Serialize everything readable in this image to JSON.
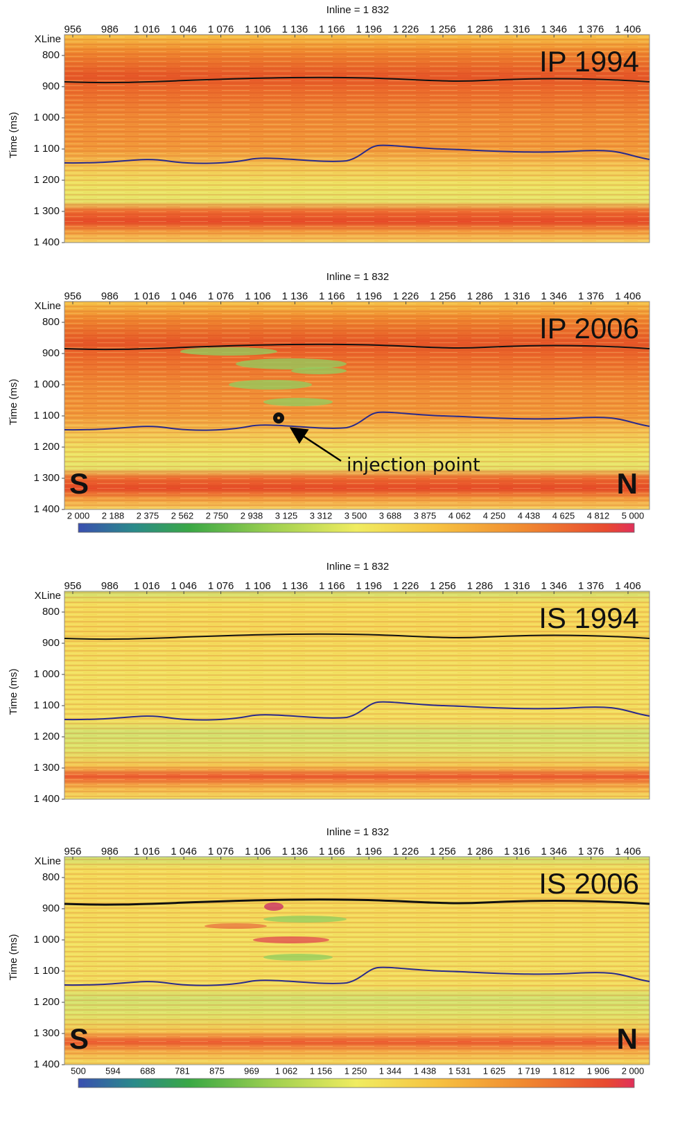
{
  "panels": [
    {
      "title": "Inline = 1 832",
      "x_axis_label": "XLine",
      "y_axis_label": "Time (ms)",
      "x_ticks": [
        "956",
        "986",
        "1 016",
        "1 046",
        "1 076",
        "1 106",
        "1 136",
        "1 166",
        "1 196",
        "1 226",
        "1 256",
        "1 286",
        "1 316",
        "1 346",
        "1 376",
        "1 406"
      ],
      "y_ticks": [
        "800",
        "900",
        "1 000",
        "1 100",
        "1 200",
        "1 300",
        "1 400"
      ],
      "label": "IP 1994"
    },
    {
      "title": "Inline = 1 832",
      "x_axis_label": "XLine",
      "y_axis_label": "Time (ms)",
      "x_ticks": [
        "956",
        "986",
        "1 016",
        "1 046",
        "1 076",
        "1 106",
        "1 136",
        "1 166",
        "1 196",
        "1 226",
        "1 256",
        "1 286",
        "1 316",
        "1 346",
        "1 376",
        "1 406"
      ],
      "y_ticks": [
        "800",
        "900",
        "1 000",
        "1 100",
        "1 200",
        "1 300",
        "1 400"
      ],
      "label": "IP 2006",
      "south_label": "S",
      "north_label": "N",
      "annotation": "injection point",
      "colorbar_ticks": [
        "2 000",
        "2 188",
        "2 375",
        "2 562",
        "2 750",
        "2 938",
        "3 125",
        "3 312",
        "3 500",
        "3 688",
        "3 875",
        "4 062",
        "4 250",
        "4 438",
        "4 625",
        "4 812",
        "5 000"
      ]
    },
    {
      "title": "Inline = 1 832",
      "x_axis_label": "XLine",
      "y_axis_label": "Time (ms)",
      "x_ticks": [
        "956",
        "986",
        "1 016",
        "1 046",
        "1 076",
        "1 106",
        "1 136",
        "1 166",
        "1 196",
        "1 226",
        "1 256",
        "1 286",
        "1 316",
        "1 346",
        "1 376",
        "1 406"
      ],
      "y_ticks": [
        "800",
        "900",
        "1 000",
        "1 100",
        "1 200",
        "1 300",
        "1 400"
      ],
      "label": "IS 1994"
    },
    {
      "title": "Inline = 1 832",
      "x_axis_label": "XLine",
      "y_axis_label": "Time (ms)",
      "x_ticks": [
        "956",
        "986",
        "1 016",
        "1 046",
        "1 076",
        "1 106",
        "1 136",
        "1 166",
        "1 196",
        "1 226",
        "1 256",
        "1 286",
        "1 316",
        "1 346",
        "1 376",
        "1 406"
      ],
      "y_ticks": [
        "800",
        "900",
        "1 000",
        "1 100",
        "1 200",
        "1 300",
        "1 400"
      ],
      "label": "IS 2006",
      "south_label": "S",
      "north_label": "N",
      "colorbar_ticks": [
        "500",
        "594",
        "688",
        "781",
        "875",
        "969",
        "1 062",
        "1 156",
        "1 250",
        "1 344",
        "1 438",
        "1 531",
        "1 625",
        "1 719",
        "1 812",
        "1 906",
        "2 000"
      ]
    }
  ]
}
